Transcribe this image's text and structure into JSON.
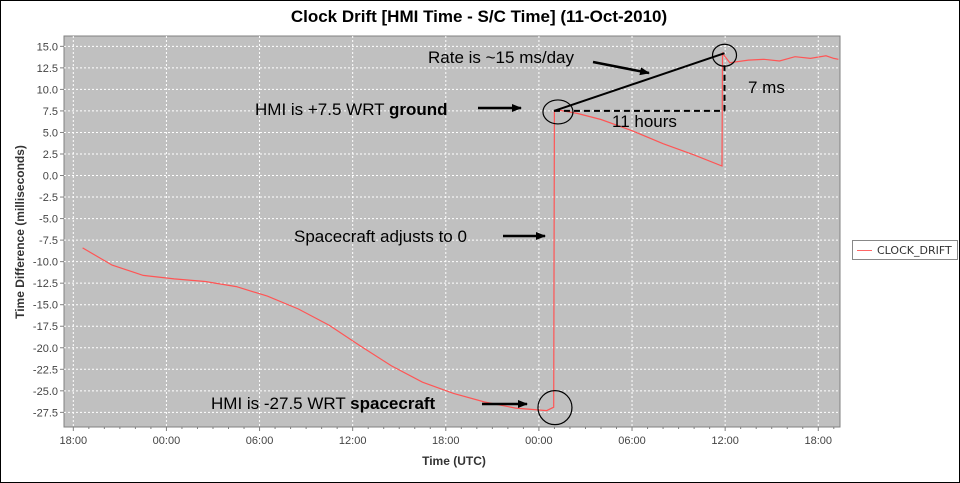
{
  "chart_data": {
    "type": "line",
    "title": "Clock Drift [HMI Time - S/C Time] (11-Oct-2010)",
    "xlabel": "Time (UTC)",
    "ylabel": "Time Difference (milliseconds)",
    "x_unit": "hours",
    "x_tick_values": [
      18,
      24,
      30,
      36,
      42,
      48,
      54,
      60,
      66
    ],
    "x_tick_labels": [
      "18:00",
      "00:00",
      "06:00",
      "12:00",
      "18:00",
      "00:00",
      "06:00",
      "12:00",
      "18:00"
    ],
    "xlim": [
      17.4,
      67.4
    ],
    "ylim": [
      -29.2,
      16.2
    ],
    "y_ticks": [
      15.0,
      12.5,
      10.0,
      7.5,
      5.0,
      2.5,
      0.0,
      -2.5,
      -5.0,
      -7.5,
      -10.0,
      -12.5,
      -15.0,
      -17.5,
      -20.0,
      -22.5,
      -25.0,
      -27.5
    ],
    "y_tick_labels": [
      "15.0",
      "12.5",
      "10.0",
      "7.5",
      "5.0",
      "2.5",
      "0.0",
      "-2.5",
      "-5.0",
      "-7.5",
      "-10.0",
      "-12.5",
      "-15.0",
      "-17.5",
      "-20.0",
      "-22.5",
      "-25.0",
      "-27.5"
    ],
    "grid": true,
    "legend_position": "right",
    "series": [
      {
        "name": "CLOCK_DRIFT",
        "color": "#ff5555",
        "x": [
          18.6,
          20.5,
          22.5,
          24.5,
          26.5,
          28.5,
          30.5,
          32.5,
          34.5,
          36.5,
          38.5,
          40.5,
          42.5,
          44.5,
          46.5,
          48.5,
          48.95,
          49.0,
          49.3,
          50.5,
          52.0,
          54.0,
          56.0,
          58.0,
          59.8,
          59.83,
          60.3,
          61.5,
          62.5,
          63.5,
          64.5,
          65.5,
          66.5,
          67.0,
          67.3
        ],
        "y": [
          -8.4,
          -10.4,
          -11.6,
          -12.0,
          -12.3,
          -12.9,
          -14.0,
          -15.5,
          -17.4,
          -19.8,
          -22.1,
          -24.0,
          -25.3,
          -26.3,
          -27.0,
          -27.3,
          -26.9,
          7.5,
          7.6,
          7.2,
          6.5,
          5.2,
          3.7,
          2.4,
          1.1,
          14.2,
          13.1,
          13.4,
          13.5,
          13.3,
          13.8,
          13.6,
          13.9,
          13.6,
          13.5
        ]
      }
    ],
    "annotations": {
      "rate_text": "Rate is ~15 ms/day",
      "seven_ms": "7 ms",
      "hmi_ground_prefix": "HMI is +7.5 WRT ",
      "hmi_ground_bold": "ground",
      "eleven_hours": "11 hours",
      "adjust_text": "Spacecraft adjusts to 0",
      "hmi_sc_prefix": "HMI is -27.5 WRT ",
      "hmi_sc_bold": "spacecraft"
    }
  }
}
